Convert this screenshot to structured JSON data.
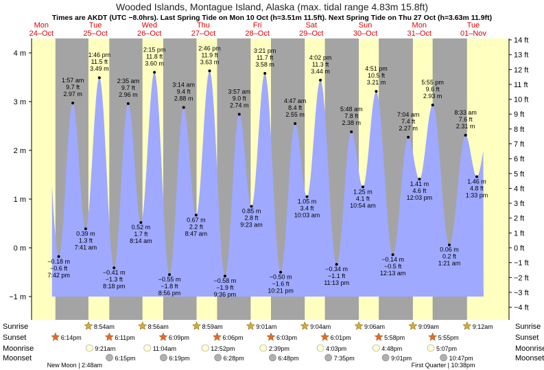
{
  "title": "Wooded Islands, Montague Island, Alaska (max. tidal range 4.83m 15.8ft)",
  "subtitle": "Times are AKDT (UTC −8.0hrs). Last Spring Tide on Mon 10 Oct (h=3.51m 11.5ft). Next Spring Tide on Thu 27 Oct (h=3.63m 11.9ft)",
  "colors": {
    "tide_fill": "#9fa9ff",
    "day_bg": "#ffffc0",
    "night_bg": "#a4a4a4",
    "day_label": "#e00000",
    "sunrise_star": "#d4b030",
    "sunset_star": "#e86830",
    "moonrise": "#ffffd0",
    "moonset": "#b0b0b0"
  },
  "chart_data": {
    "type": "area",
    "title": "Wooded Islands, Montague Island, Alaska (max. tidal range 4.83m 15.8ft)",
    "days": [
      {
        "dow": "Mon",
        "date": "24–Oct"
      },
      {
        "dow": "Tue",
        "date": "25–Oct"
      },
      {
        "dow": "Wed",
        "date": "26–Oct"
      },
      {
        "dow": "Thu",
        "date": "27–Oct"
      },
      {
        "dow": "Fri",
        "date": "28–Oct"
      },
      {
        "dow": "Sat",
        "date": "29–Oct"
      },
      {
        "dow": "Sun",
        "date": "30–Oct"
      },
      {
        "dow": "Mon",
        "date": "31–Oct"
      },
      {
        "dow": "Tue",
        "date": "01–Nov"
      }
    ],
    "y_left_unit": "m",
    "y_left_ticks": [
      "−1 m",
      "0 m",
      "1 m",
      "2 m",
      "3 m",
      "4 m"
    ],
    "y_right_ticks": [
      "−4 ft",
      "−3 ft",
      "−2 ft",
      "−1 ft",
      "0 ft",
      "1 ft",
      "2 ft",
      "3 ft",
      "4 ft",
      "5 ft",
      "6 ft",
      "7 ft",
      "8 ft",
      "9 ft",
      "10 ft",
      "11 ft",
      "12 ft",
      "13 ft",
      "14 ft"
    ],
    "ylim_m": [
      -1.3,
      4.3
    ],
    "tides": [
      {
        "day": 0,
        "time": "7:42 pm",
        "hours": 19.7,
        "m": -0.18,
        "ft": "−0.6 ft",
        "m_label": "−0.18 m",
        "type": "low"
      },
      {
        "day": 1,
        "time": "1:57 am",
        "hours": 25.95,
        "m": 2.97,
        "ft": "9.7 ft",
        "m_label": "2.97 m",
        "type": "high"
      },
      {
        "day": 1,
        "time": "7:41 am",
        "hours": 31.68,
        "m": 0.39,
        "ft": "1.3 ft",
        "m_label": "0.39 m",
        "type": "low"
      },
      {
        "day": 1,
        "time": "1:46 pm",
        "hours": 37.77,
        "m": 3.49,
        "ft": "11.5 ft",
        "m_label": "3.49 m",
        "type": "high"
      },
      {
        "day": 1,
        "time": "8:18 pm",
        "hours": 44.3,
        "m": -0.41,
        "ft": "−1.3 ft",
        "m_label": "−0.41 m",
        "type": "low"
      },
      {
        "day": 2,
        "time": "2:35 am",
        "hours": 50.58,
        "m": 2.96,
        "ft": "9.7 ft",
        "m_label": "2.96 m",
        "type": "high"
      },
      {
        "day": 2,
        "time": "8:14 am",
        "hours": 56.23,
        "m": 0.52,
        "ft": "1.7 ft",
        "m_label": "0.52 m",
        "type": "low"
      },
      {
        "day": 2,
        "time": "2:15 pm",
        "hours": 62.25,
        "m": 3.6,
        "ft": "11.8 ft",
        "m_label": "3.60 m",
        "type": "high"
      },
      {
        "day": 2,
        "time": "8:56 pm",
        "hours": 68.93,
        "m": -0.55,
        "ft": "−1.8 ft",
        "m_label": "−0.55 m",
        "type": "low"
      },
      {
        "day": 3,
        "time": "3:14 am",
        "hours": 75.23,
        "m": 2.88,
        "ft": "9.4 ft",
        "m_label": "2.88 m",
        "type": "high"
      },
      {
        "day": 3,
        "time": "8:47 am",
        "hours": 80.78,
        "m": 0.67,
        "ft": "2.2 ft",
        "m_label": "0.67 m",
        "type": "low"
      },
      {
        "day": 3,
        "time": "2:46 pm",
        "hours": 86.77,
        "m": 3.63,
        "ft": "11.9 ft",
        "m_label": "3.63 m",
        "type": "high"
      },
      {
        "day": 3,
        "time": "9:36 pm",
        "hours": 93.6,
        "m": -0.58,
        "ft": "−1.9 ft",
        "m_label": "−0.58 m",
        "type": "low"
      },
      {
        "day": 4,
        "time": "3:57 am",
        "hours": 99.95,
        "m": 2.74,
        "ft": "9.0 ft",
        "m_label": "2.74 m",
        "type": "high"
      },
      {
        "day": 4,
        "time": "9:23 am",
        "hours": 105.38,
        "m": 0.85,
        "ft": "2.8 ft",
        "m_label": "0.85 m",
        "type": "low"
      },
      {
        "day": 4,
        "time": "3:21 pm",
        "hours": 111.35,
        "m": 3.58,
        "ft": "11.7 ft",
        "m_label": "3.58 m",
        "type": "high"
      },
      {
        "day": 4,
        "time": "10:21 pm",
        "hours": 118.35,
        "m": -0.5,
        "ft": "−1.6 ft",
        "m_label": "−0.50 m",
        "type": "low"
      },
      {
        "day": 5,
        "time": "4:47 am",
        "hours": 124.78,
        "m": 2.55,
        "ft": "8.4 ft",
        "m_label": "2.55 m",
        "type": "high"
      },
      {
        "day": 5,
        "time": "10:03 am",
        "hours": 130.05,
        "m": 1.05,
        "ft": "3.4 ft",
        "m_label": "1.05 m",
        "type": "low"
      },
      {
        "day": 5,
        "time": "4:02 pm",
        "hours": 136.03,
        "m": 3.44,
        "ft": "11.3 ft",
        "m_label": "3.44 m",
        "type": "high"
      },
      {
        "day": 5,
        "time": "11:13 pm",
        "hours": 143.22,
        "m": -0.34,
        "ft": "−1.1 ft",
        "m_label": "−0.34 m",
        "type": "low"
      },
      {
        "day": 6,
        "time": "5:48 am",
        "hours": 149.8,
        "m": 2.38,
        "ft": "7.8 ft",
        "m_label": "2.38 m",
        "type": "high"
      },
      {
        "day": 6,
        "time": "10:54 am",
        "hours": 154.9,
        "m": 1.25,
        "ft": "4.1 ft",
        "m_label": "1.25 m",
        "type": "low"
      },
      {
        "day": 6,
        "time": "4:51 pm",
        "hours": 160.85,
        "m": 3.21,
        "ft": "10.5 ft",
        "m_label": "3.21 m",
        "type": "high"
      },
      {
        "day": 7,
        "time": "12:13 am",
        "hours": 168.22,
        "m": -0.14,
        "ft": "−0.5 ft",
        "m_label": "−0.14 m",
        "type": "low"
      },
      {
        "day": 7,
        "time": "7:04 am",
        "hours": 175.07,
        "m": 2.27,
        "ft": "7.4 ft",
        "m_label": "2.27 m",
        "type": "high"
      },
      {
        "day": 7,
        "time": "12:03 pm",
        "hours": 180.05,
        "m": 1.41,
        "ft": "4.6 ft",
        "m_label": "1.41 m",
        "type": "low"
      },
      {
        "day": 7,
        "time": "5:55 pm",
        "hours": 185.92,
        "m": 2.93,
        "ft": "9.6 ft",
        "m_label": "2.93 m",
        "type": "high"
      },
      {
        "day": 8,
        "time": "1:21 am",
        "hours": 193.35,
        "m": 0.06,
        "ft": "0.2 ft",
        "m_label": "0.06 m",
        "type": "low"
      },
      {
        "day": 8,
        "time": "8:33 am",
        "hours": 200.55,
        "m": 2.31,
        "ft": "7.6 ft",
        "m_label": "2.31 m",
        "type": "high"
      },
      {
        "day": 8,
        "time": "1:33 pm",
        "hours": 205.55,
        "m": 1.46,
        "ft": "4.8 ft",
        "m_label": "1.46 m",
        "type": "low"
      }
    ]
  },
  "events": {
    "row_labels": {
      "sunrise": "Sunrise",
      "sunset": "Sunset",
      "moonrise": "Moonrise",
      "moonset": "Moonset"
    },
    "sunrise": [
      {
        "time": "8:54am",
        "hours": 32.9
      },
      {
        "time": "8:56am",
        "hours": 56.93
      },
      {
        "time": "8:59am",
        "hours": 80.98
      },
      {
        "time": "9:01am",
        "hours": 105.02
      },
      {
        "time": "9:04am",
        "hours": 129.07
      },
      {
        "time": "9:06am",
        "hours": 153.1
      },
      {
        "time": "9:09am",
        "hours": 177.15
      },
      {
        "time": "9:12am",
        "hours": 201.2
      }
    ],
    "sunset": [
      {
        "time": "6:14pm",
        "hours": 18.23
      },
      {
        "time": "6:11pm",
        "hours": 42.18
      },
      {
        "time": "6:09pm",
        "hours": 66.15
      },
      {
        "time": "6:06pm",
        "hours": 90.1
      },
      {
        "time": "6:03pm",
        "hours": 114.05
      },
      {
        "time": "6:01pm",
        "hours": 138.02
      },
      {
        "time": "5:58pm",
        "hours": 161.97
      },
      {
        "time": "5:55pm",
        "hours": 185.92
      }
    ],
    "moonrise": [
      {
        "time": "9:21am",
        "hours": 33.35
      },
      {
        "time": "11:04am",
        "hours": 59.07
      },
      {
        "time": "12:52pm",
        "hours": 84.87
      },
      {
        "time": "2:39pm",
        "hours": 110.65
      },
      {
        "time": "4:03pm",
        "hours": 136.05
      },
      {
        "time": "4:48pm",
        "hours": 160.8
      },
      {
        "time": "5:07pm",
        "hours": 185.12
      }
    ],
    "moonset": [
      {
        "time": "6:15pm",
        "hours": 42.25
      },
      {
        "time": "6:19pm",
        "hours": 66.32
      },
      {
        "time": "6:28pm",
        "hours": 90.47
      },
      {
        "time": "6:48pm",
        "hours": 114.8
      },
      {
        "time": "7:35pm",
        "hours": 139.58
      },
      {
        "time": "9:01pm",
        "hours": 165.02
      },
      {
        "time": "10:47pm",
        "hours": 190.78
      }
    ],
    "moon_phases": [
      {
        "label": "New Moon | 2:48am",
        "hours": 26.8
      },
      {
        "label": "First Quarter | 10:38pm",
        "hours": 190.63
      }
    ]
  }
}
